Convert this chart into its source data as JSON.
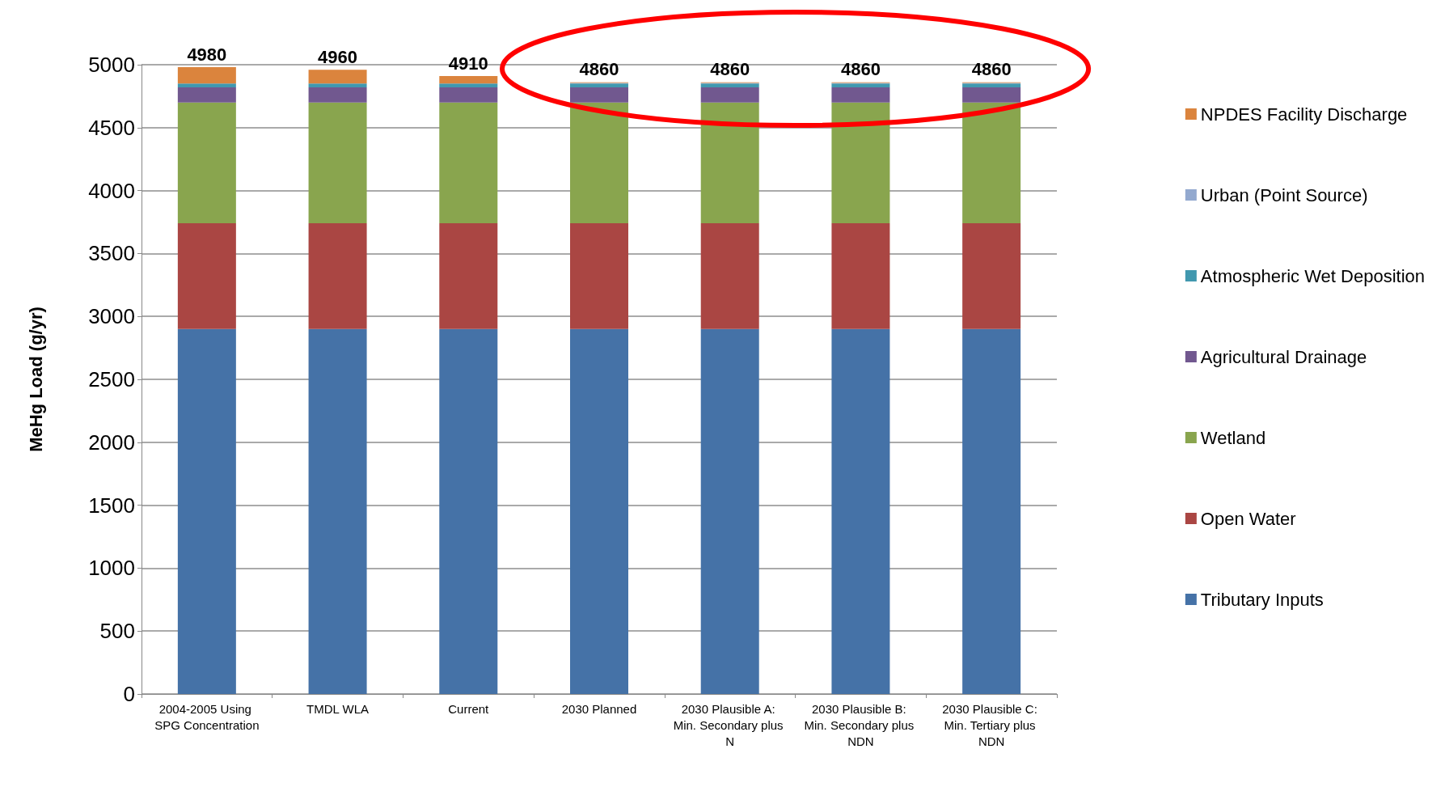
{
  "chart_data": {
    "type": "bar",
    "stacked": true,
    "ylabel": "MeHg Load (g/yr)",
    "categories": [
      "2004-2005 Using SPG Concentration",
      "TMDL WLA",
      "Current",
      "2030 Planned",
      "2030 Plausible A: Min. Secondary plus N",
      "2030 Plausible B: Min. Secondary plus NDN",
      "2030 Plausible C: Min. Tertiary plus NDN"
    ],
    "series": [
      {
        "name": "Tributary Inputs",
        "color": "#4572a7",
        "values": [
          2900,
          2900,
          2900,
          2900,
          2900,
          2900,
          2900
        ]
      },
      {
        "name": "Open Water",
        "color": "#aa4643",
        "values": [
          840,
          840,
          840,
          840,
          840,
          840,
          840
        ]
      },
      {
        "name": "Wetland",
        "color": "#89a54e",
        "values": [
          960,
          960,
          960,
          960,
          960,
          960,
          960
        ]
      },
      {
        "name": "Agricultural Drainage",
        "color": "#71588f",
        "values": [
          120,
          120,
          120,
          120,
          120,
          120,
          120
        ]
      },
      {
        "name": "Atmospheric Wet Deposition",
        "color": "#4198af",
        "values": [
          30,
          30,
          30,
          30,
          30,
          30,
          30
        ]
      },
      {
        "name": "Urban (Point Source)",
        "color": "#93a9cf",
        "values": [
          null,
          null,
          null,
          5,
          5,
          5,
          5
        ]
      },
      {
        "name": "NPDES Facility Discharge",
        "color": "#db843d",
        "values": [
          130,
          110,
          60,
          5,
          5,
          5,
          5
        ]
      }
    ],
    "totals": [
      "4980",
      "4960",
      "4910",
      "4860",
      "4860",
      "4860",
      "4860"
    ],
    "ylim": [
      0,
      5000
    ],
    "yticks": [
      0,
      500,
      1000,
      1500,
      2000,
      2500,
      3000,
      3500,
      4000,
      4500,
      5000
    ],
    "grid": "y",
    "legend": "right"
  }
}
